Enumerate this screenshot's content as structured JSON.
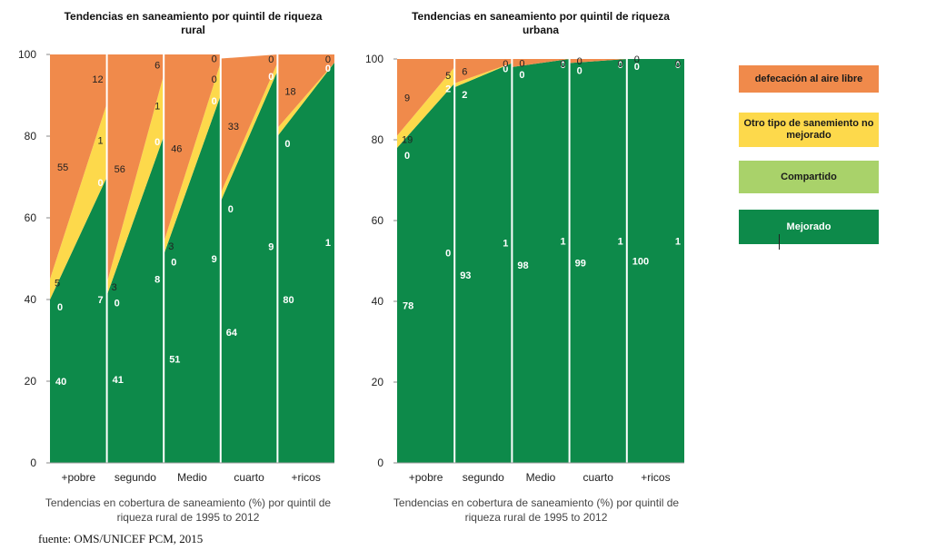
{
  "source": "fuente: OMS/UNICEF PCM, 2015",
  "legend": [
    {
      "label": "defecación al aire libre",
      "color": "#f08a4b",
      "text_color": "#1a1a1a"
    },
    {
      "label": "Otro tipo de sanemiento no mejorado",
      "color": "#fdd94b",
      "text_color": "#1a1a1a"
    },
    {
      "label": "Compartido",
      "color": "#a9d26a",
      "text_color": "#1a1a1a"
    },
    {
      "label": "Mejorado",
      "color": "#0d8a4a",
      "text_color": "#ffffff"
    }
  ],
  "chart_data": [
    {
      "type": "area",
      "title": "Tendencias en saneamiento por quintil de riqueza rural",
      "caption": "Tendencias en cobertura de saneamiento (%) por quintil de riqueza rural de 1995 to 2012",
      "categories": [
        "+pobre",
        "segundo",
        "Medio",
        "cuarto",
        "+ricos"
      ],
      "ylim": [
        0,
        100
      ],
      "yticks": [
        0,
        20,
        40,
        60,
        80,
        100
      ],
      "series_order": [
        "Mejorado",
        "Compartido",
        "Otro tipo de sanemiento no mejorado",
        "defecación al aire libre"
      ],
      "values_1995": {
        "Mejorado": [
          40,
          41,
          51,
          64,
          80
        ],
        "Compartido": [
          0,
          0,
          0,
          0,
          0
        ],
        "Otro tipo de sanemiento no mejorado": [
          5,
          3,
          3,
          2,
          2
        ],
        "defecación al aire libre": [
          55,
          56,
          46,
          33,
          18
        ]
      },
      "values_2012": {
        "Mejorado": [
          70,
          80,
          90,
          96,
          98
        ],
        "Compartido": [
          0,
          0,
          0,
          0,
          0
        ],
        "Otro tipo de sanemiento no mejorado": [
          18,
          15,
          8,
          2,
          0
        ],
        "defecación al aire libre": [
          12,
          5,
          2,
          2,
          2
        ]
      },
      "labels": [
        [
          "40",
          "0",
          "5",
          "55",
          "7",
          "0",
          "1",
          "12"
        ],
        [
          "41",
          "0",
          "3",
          "56",
          "8",
          "0",
          "1",
          "6"
        ],
        [
          "51",
          "0",
          "3",
          "46",
          "9",
          "0",
          "0",
          "0"
        ],
        [
          "64",
          "0",
          "33",
          "9",
          "0",
          "0"
        ],
        [
          "80",
          "0",
          "18",
          "1",
          "0",
          "0"
        ]
      ]
    },
    {
      "type": "area",
      "title": "Tendencias en saneamiento por quintil de riqueza urbana",
      "caption": "Tendencias en cobertura de saneamiento (%) por quintil de riqueza rural de 1995 to 2012",
      "categories": [
        "+pobre",
        "segundo",
        "Medio",
        "cuarto",
        "+ricos"
      ],
      "ylim": [
        0,
        100
      ],
      "yticks": [
        0,
        20,
        40,
        60,
        80,
        100
      ],
      "series_order": [
        "Mejorado",
        "Compartido",
        "Otro tipo de sanemiento no mejorado",
        "defecación al aire libre"
      ],
      "values_1995": {
        "Mejorado": [
          78,
          93,
          98,
          99,
          100
        ],
        "Compartido": [
          0,
          0,
          0,
          0,
          0
        ],
        "Otro tipo de sanemiento no mejorado": [
          3,
          1,
          0,
          0,
          0
        ],
        "defecación al aire libre": [
          19,
          6,
          2,
          1,
          0
        ]
      },
      "values_2012": {
        "Mejorado": [
          94,
          99,
          100,
          100,
          100
        ],
        "Compartido": [
          0,
          0,
          0,
          0,
          0
        ],
        "Otro tipo de sanemiento no mejorado": [
          4,
          0,
          0,
          0,
          0
        ],
        "defecación al aire libre": [
          2,
          1,
          0,
          0,
          0
        ]
      },
      "labels": [
        [
          "78",
          "0",
          "19",
          "9",
          "0",
          "2",
          "5"
        ],
        [
          "93",
          "2",
          "6",
          "1",
          "0",
          "0"
        ],
        [
          "98",
          "0",
          "0",
          "1",
          "0",
          "0"
        ],
        [
          "99",
          "0",
          "0",
          "1",
          "0",
          "0"
        ],
        [
          "100",
          "0",
          "0",
          "1",
          "0",
          "0"
        ]
      ]
    }
  ]
}
